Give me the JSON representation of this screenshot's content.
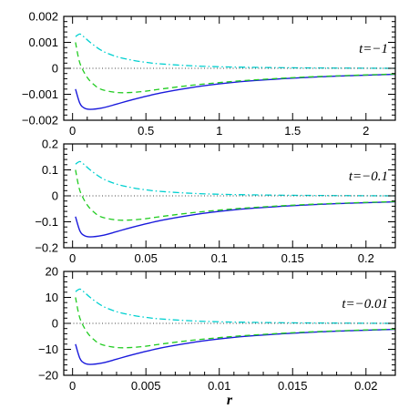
{
  "chart_data": [
    {
      "type": "line",
      "annotation": "t=−1",
      "xlim": [
        -0.06,
        2.2
      ],
      "ylim": [
        -0.002,
        0.002
      ],
      "xticks": [
        0,
        0.5,
        1,
        1.5,
        2
      ],
      "xtick_labels": [
        "0",
        "0.5",
        "1",
        "1.5",
        "2"
      ],
      "yticks": [
        -0.002,
        -0.001,
        0,
        0.001,
        0.002
      ],
      "ytick_labels": [
        "−0.002",
        "−0.001",
        "0",
        "0.001",
        "0.002"
      ],
      "xlabel": "",
      "series": [
        {
          "style": "solid",
          "color": "#1a1adc",
          "x": [
            0.02,
            0.05,
            0.08,
            0.12,
            0.2,
            0.3,
            0.4,
            0.6,
            0.8,
            1.0,
            1.2,
            1.5,
            1.8,
            2.2
          ],
          "y": [
            -0.0008,
            -0.00135,
            -0.00153,
            -0.00158,
            -0.00153,
            -0.00138,
            -0.00122,
            -0.00095,
            -0.00075,
            -0.0006,
            -0.00049,
            -0.00038,
            -0.0003,
            -0.00023
          ]
        },
        {
          "style": "dashed",
          "color": "#22cc22",
          "x": [
            0.02,
            0.05,
            0.1,
            0.15,
            0.2,
            0.3,
            0.4,
            0.5,
            0.6,
            0.8,
            1.0,
            1.2,
            1.5,
            1.8,
            2.2
          ],
          "y": [
            0.001,
            0.0002,
            -0.00035,
            -0.00065,
            -0.00082,
            -0.00093,
            -0.00093,
            -0.00088,
            -0.0008,
            -0.00066,
            -0.00055,
            -0.00046,
            -0.00036,
            -0.00029,
            -0.00022
          ]
        },
        {
          "style": "dashdot",
          "color": "#00d0d0",
          "x": [
            0.02,
            0.05,
            0.08,
            0.12,
            0.2,
            0.3,
            0.4,
            0.5,
            0.6,
            0.8,
            1.0,
            1.2,
            1.5,
            1.8,
            2.2
          ],
          "y": [
            0.00122,
            0.00132,
            0.0012,
            0.001,
            0.00068,
            0.00045,
            0.00032,
            0.00023,
            0.00017,
            0.0001,
            6e-05,
            4e-05,
            2e-05,
            1e-05,
            0.0
          ]
        },
        {
          "style": "dotted",
          "color": "#444444",
          "x": [
            -0.06,
            2.2
          ],
          "y": [
            0,
            0
          ]
        }
      ]
    },
    {
      "type": "line",
      "annotation": "t=−0.1",
      "xlim": [
        -0.006,
        0.22
      ],
      "ylim": [
        -0.2,
        0.2
      ],
      "xticks": [
        0,
        0.05,
        0.1,
        0.15,
        0.2
      ],
      "xtick_labels": [
        "0",
        "0.05",
        "0.1",
        "0.15",
        "0.2"
      ],
      "yticks": [
        -0.2,
        -0.1,
        0,
        0.1,
        0.2
      ],
      "ytick_labels": [
        "−0.2",
        "−0.1",
        "0",
        "0.1",
        "0.2"
      ],
      "xlabel": "",
      "series": [
        {
          "style": "solid",
          "color": "#1a1adc",
          "x": [
            0.002,
            0.005,
            0.008,
            0.012,
            0.02,
            0.03,
            0.04,
            0.06,
            0.08,
            0.1,
            0.12,
            0.15,
            0.18,
            0.22
          ],
          "y": [
            -0.08,
            -0.135,
            -0.153,
            -0.158,
            -0.153,
            -0.138,
            -0.122,
            -0.095,
            -0.075,
            -0.06,
            -0.049,
            -0.038,
            -0.03,
            -0.023
          ]
        },
        {
          "style": "dashed",
          "color": "#22cc22",
          "x": [
            0.002,
            0.005,
            0.01,
            0.015,
            0.02,
            0.03,
            0.04,
            0.05,
            0.06,
            0.08,
            0.1,
            0.12,
            0.15,
            0.18,
            0.22
          ],
          "y": [
            0.1,
            0.02,
            -0.035,
            -0.065,
            -0.082,
            -0.093,
            -0.093,
            -0.088,
            -0.08,
            -0.066,
            -0.055,
            -0.046,
            -0.036,
            -0.029,
            -0.022
          ]
        },
        {
          "style": "dashdot",
          "color": "#00d0d0",
          "x": [
            0.002,
            0.005,
            0.008,
            0.012,
            0.02,
            0.03,
            0.04,
            0.05,
            0.06,
            0.08,
            0.1,
            0.12,
            0.15,
            0.18,
            0.22
          ],
          "y": [
            0.122,
            0.132,
            0.12,
            0.1,
            0.068,
            0.045,
            0.032,
            0.023,
            0.017,
            0.01,
            0.006,
            0.004,
            0.002,
            0.001,
            0.0
          ]
        },
        {
          "style": "dotted",
          "color": "#444444",
          "x": [
            -0.006,
            0.22
          ],
          "y": [
            0,
            0
          ]
        }
      ]
    },
    {
      "type": "line",
      "annotation": "t=−0.01",
      "xlim": [
        -0.0006,
        0.022
      ],
      "ylim": [
        -20,
        20
      ],
      "xticks": [
        0,
        0.005,
        0.01,
        0.015,
        0.02
      ],
      "xtick_labels": [
        "0",
        "0.005",
        "0.01",
        "0.015",
        "0.02"
      ],
      "yticks": [
        -20,
        -10,
        0,
        10,
        20
      ],
      "ytick_labels": [
        "−20",
        "−10",
        "0",
        "10",
        "20"
      ],
      "xlabel": "r",
      "series": [
        {
          "style": "solid",
          "color": "#1a1adc",
          "x": [
            0.0002,
            0.0005,
            0.0008,
            0.0012,
            0.002,
            0.003,
            0.004,
            0.006,
            0.008,
            0.01,
            0.012,
            0.015,
            0.018,
            0.022
          ],
          "y": [
            -8,
            -13.5,
            -15.3,
            -15.8,
            -15.3,
            -13.8,
            -12.2,
            -9.5,
            -7.5,
            -6.0,
            -4.9,
            -3.8,
            -3.0,
            -2.3
          ]
        },
        {
          "style": "dashed",
          "color": "#22cc22",
          "x": [
            0.0002,
            0.0005,
            0.001,
            0.0015,
            0.002,
            0.003,
            0.004,
            0.005,
            0.006,
            0.008,
            0.01,
            0.012,
            0.015,
            0.018,
            0.022
          ],
          "y": [
            10,
            2,
            -3.5,
            -6.5,
            -8.2,
            -9.3,
            -9.3,
            -8.8,
            -8.0,
            -6.6,
            -5.5,
            -4.6,
            -3.6,
            -2.9,
            -2.2
          ]
        },
        {
          "style": "dashdot",
          "color": "#00d0d0",
          "x": [
            0.0002,
            0.0005,
            0.0008,
            0.0012,
            0.002,
            0.003,
            0.004,
            0.005,
            0.006,
            0.008,
            0.01,
            0.012,
            0.015,
            0.018,
            0.022
          ],
          "y": [
            12.2,
            13.2,
            12.0,
            10.0,
            6.8,
            4.5,
            3.2,
            2.3,
            1.7,
            1.0,
            0.6,
            0.4,
            0.2,
            0.1,
            0.0
          ]
        },
        {
          "style": "dotted",
          "color": "#444444",
          "x": [
            -0.0006,
            0.022
          ],
          "y": [
            0,
            0
          ]
        }
      ]
    }
  ]
}
